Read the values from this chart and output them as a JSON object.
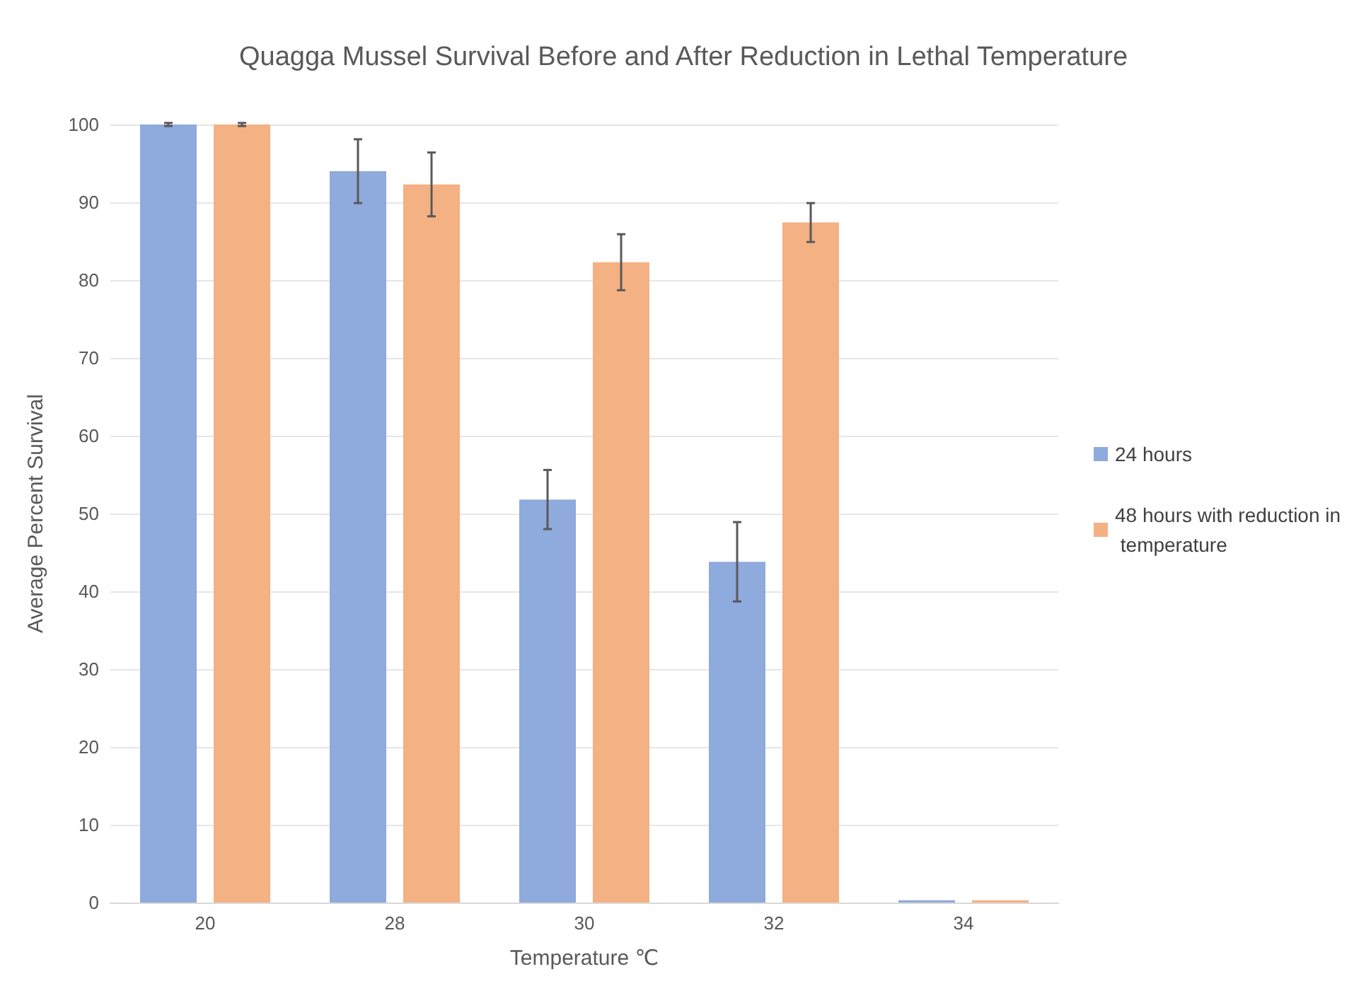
{
  "chart_data": {
    "type": "bar",
    "title": "Quagga Mussel Survival Before and After Reduction in Lethal Temperature",
    "xlabel": "Temperature ℃",
    "ylabel": "Average Percent Survival",
    "categories": [
      "20",
      "28",
      "30",
      "32",
      "34"
    ],
    "series": [
      {
        "name": "24 hours",
        "color": "#8faadc",
        "values": [
          100,
          94,
          51.8,
          43.8,
          0.3
        ],
        "errors": [
          0.2,
          4.1,
          3.8,
          5.1,
          null
        ]
      },
      {
        "name": "48 hours with reduction in temperature",
        "color": "#f4b183",
        "values": [
          100,
          92.3,
          82.3,
          87.4,
          0.3
        ],
        "errors": [
          0.2,
          4.1,
          3.6,
          2.5,
          null
        ]
      }
    ],
    "ylim": [
      0,
      100
    ],
    "yticks": [
      0,
      10,
      20,
      30,
      40,
      50,
      60,
      70,
      80,
      90,
      100
    ],
    "grid": "y",
    "legend": "right"
  }
}
